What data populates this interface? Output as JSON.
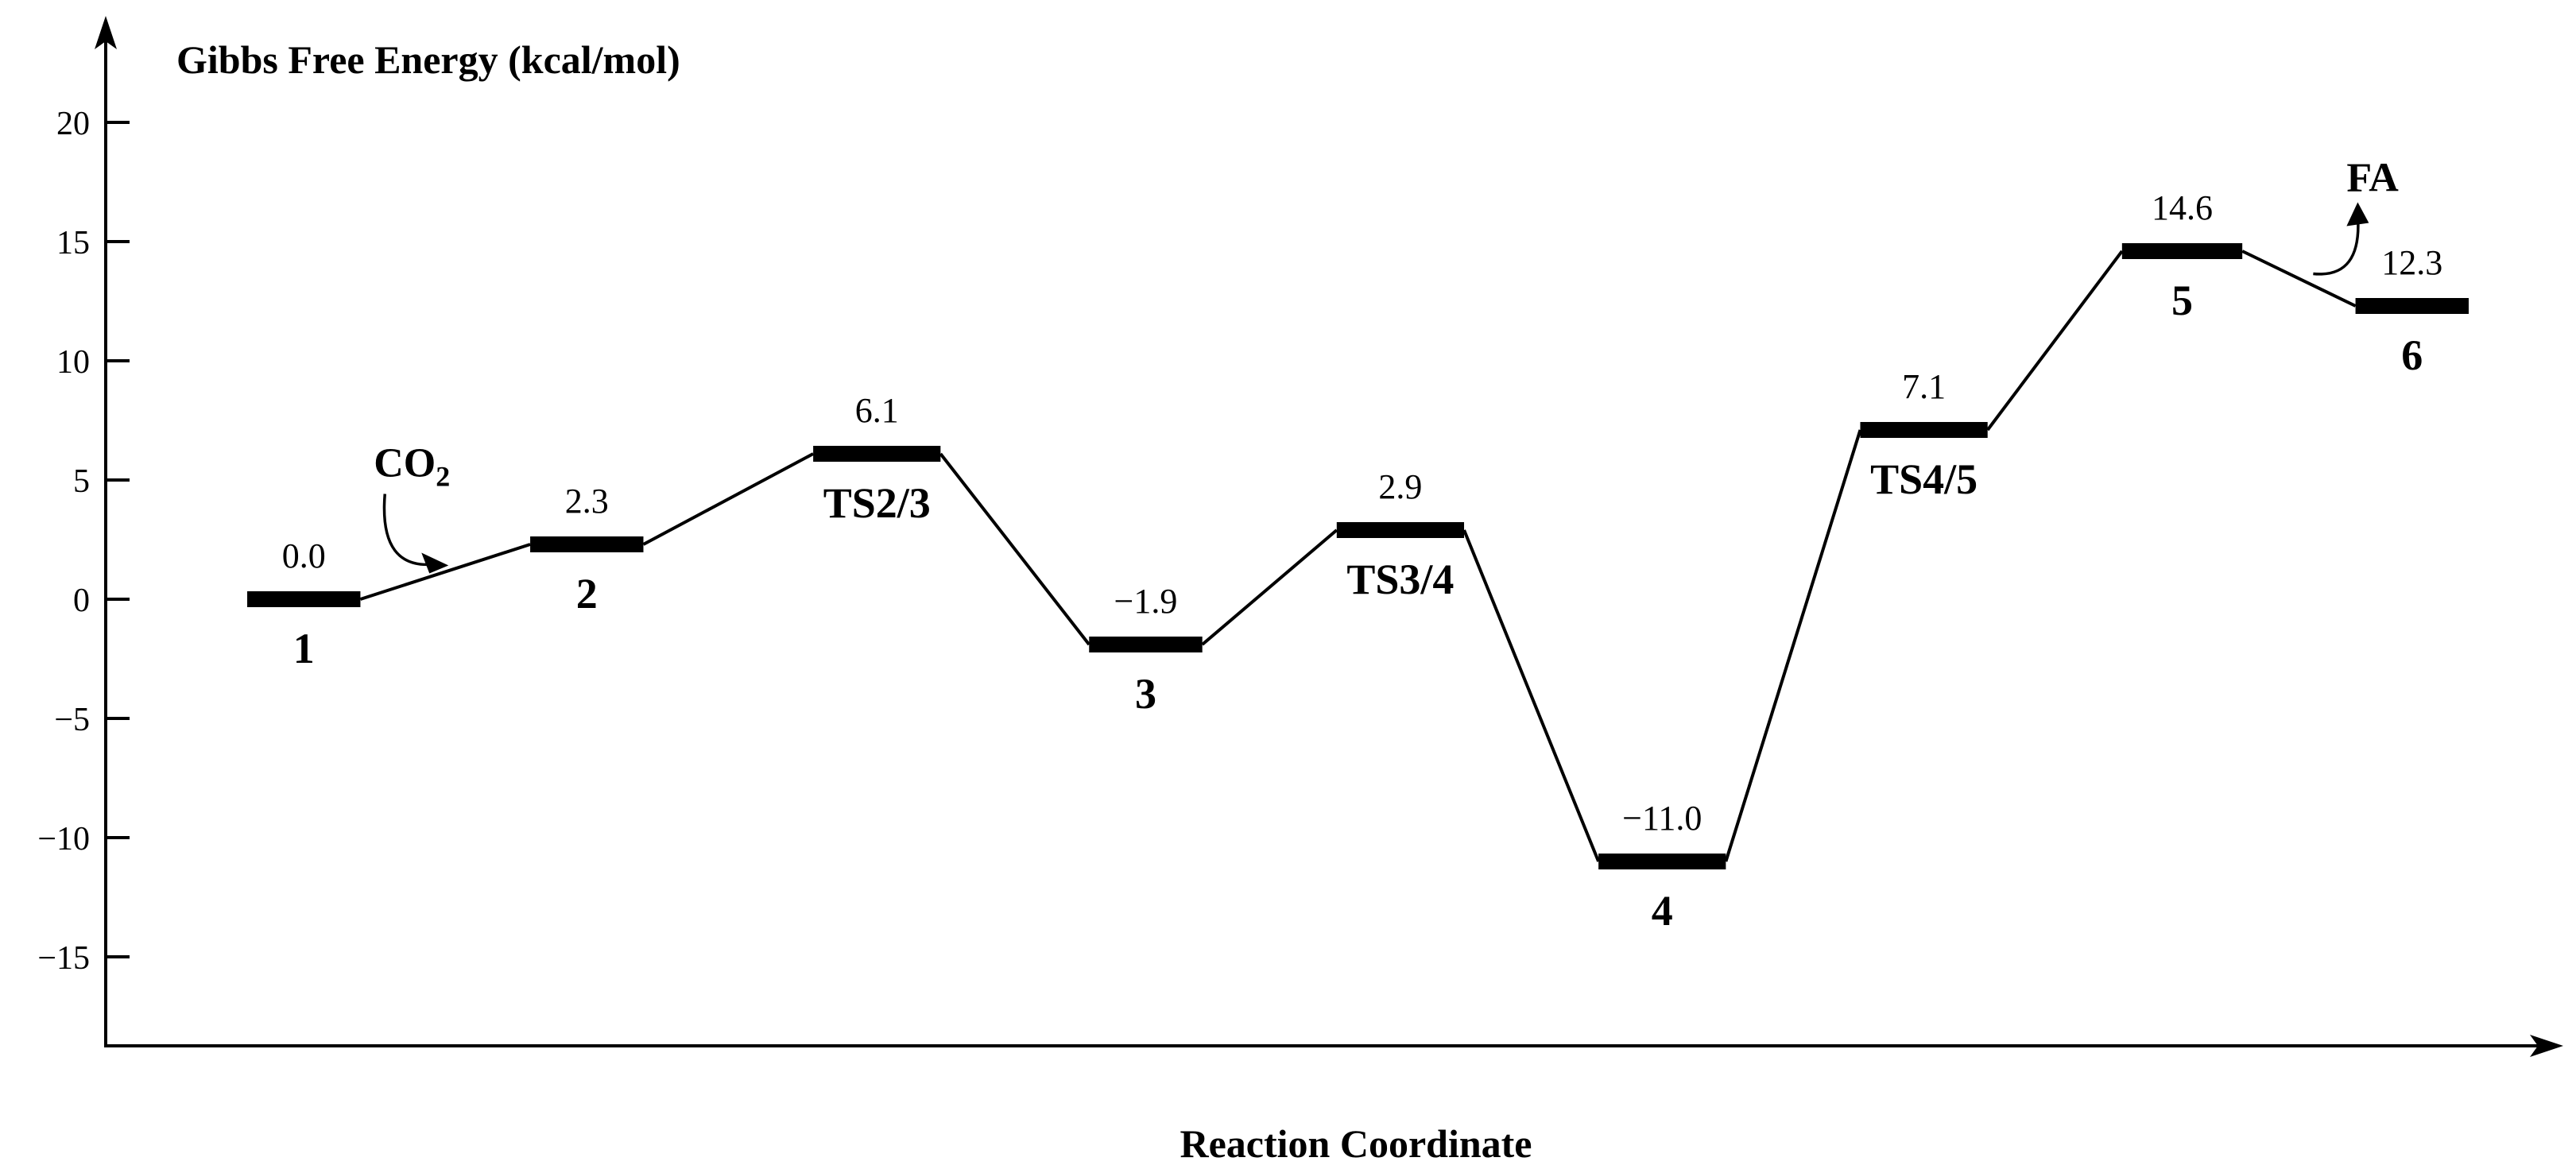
{
  "chart_data": {
    "type": "energy_profile",
    "ylabel": "Gibbs Free Energy (kcal/mol)",
    "xlabel": "Reaction Coordinate",
    "ylim": [
      -18.5,
      24
    ],
    "yticks": [
      {
        "value": 20,
        "label": "20"
      },
      {
        "value": 15,
        "label": "15"
      },
      {
        "value": 10,
        "label": "10"
      },
      {
        "value": 5,
        "label": "5"
      },
      {
        "value": 0,
        "label": "0"
      },
      {
        "value": -5,
        "label": "−5"
      },
      {
        "value": -10,
        "label": "−10"
      },
      {
        "value": -15,
        "label": "−15"
      }
    ],
    "states": [
      {
        "id": "s1",
        "name": "1",
        "energy": 0.0,
        "energy_label": "0.0",
        "x": [
          1.0,
          1.8
        ],
        "name_pos": "below"
      },
      {
        "id": "s2",
        "name": "2",
        "energy": 2.3,
        "energy_label": "2.3",
        "x": [
          3.0,
          3.8
        ],
        "name_pos": "below"
      },
      {
        "id": "ts23",
        "name": "TS2/3",
        "energy": 6.1,
        "energy_label": "6.1",
        "x": [
          5.0,
          5.9
        ],
        "name_pos": "below"
      },
      {
        "id": "s3",
        "name": "3",
        "energy": -1.9,
        "energy_label": "−1.9",
        "x": [
          6.95,
          7.75
        ],
        "name_pos": "below"
      },
      {
        "id": "ts34",
        "name": "TS3/4",
        "energy": 2.9,
        "energy_label": "2.9",
        "x": [
          8.7,
          9.6
        ],
        "name_pos": "below"
      },
      {
        "id": "s4",
        "name": "4",
        "energy": -11.0,
        "energy_label": "−11.0",
        "x": [
          10.55,
          11.45
        ],
        "name_pos": "below"
      },
      {
        "id": "ts45",
        "name": "TS4/5",
        "energy": 7.1,
        "energy_label": "7.1",
        "x": [
          12.4,
          13.3
        ],
        "name_pos": "below"
      },
      {
        "id": "s5",
        "name": "5",
        "energy": 14.6,
        "energy_label": "14.6",
        "x": [
          14.25,
          15.1
        ],
        "name_pos": "below"
      },
      {
        "id": "s6",
        "name": "6",
        "energy": 12.3,
        "energy_label": "12.3",
        "x": [
          15.9,
          16.7
        ],
        "name_pos": "below"
      }
    ],
    "annotations": [
      {
        "id": "co2",
        "text": "CO",
        "subscript": "2",
        "between": [
          "s1",
          "s2"
        ],
        "direction": "in"
      },
      {
        "id": "fa",
        "text": "FA",
        "subscript": "",
        "between": [
          "s5",
          "s6"
        ],
        "direction": "out"
      }
    ]
  }
}
